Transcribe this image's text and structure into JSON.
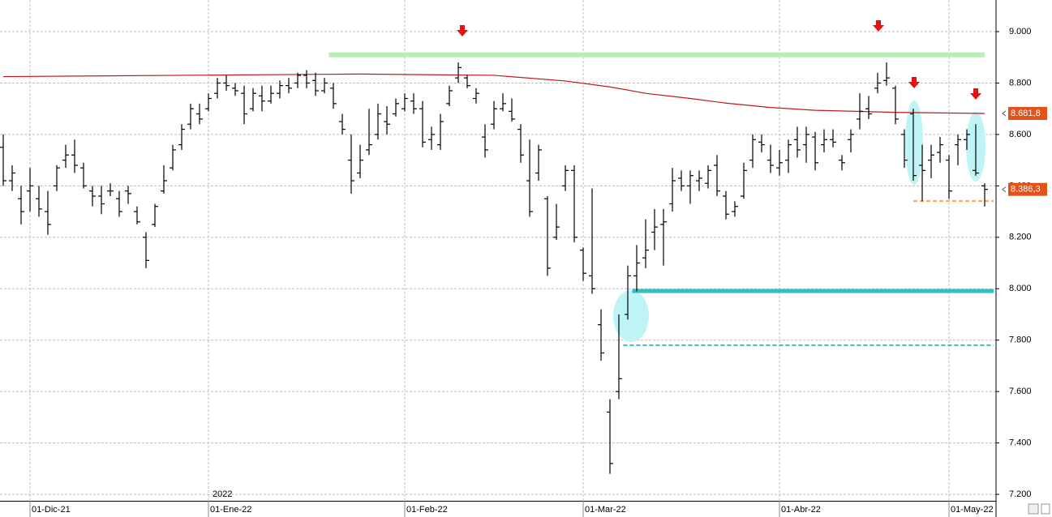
{
  "chart_data": {
    "type": "ohlc",
    "year_label": "2022",
    "categories": [
      null,
      null,
      null,
      "01-Dic-21",
      null,
      null,
      null,
      null,
      null,
      null,
      null,
      null,
      null,
      null,
      null,
      null,
      null,
      null,
      null,
      null,
      null,
      null,
      null,
      "01-Ene-22",
      null,
      null,
      null,
      null,
      null,
      null,
      null,
      null,
      null,
      null,
      null,
      null,
      null,
      null,
      null,
      null,
      null,
      null,
      null,
      null,
      null,
      "01-Feb-22",
      null,
      null,
      null,
      null,
      null,
      null,
      null,
      null,
      null,
      null,
      null,
      null,
      null,
      null,
      null,
      null,
      null,
      null,
      null,
      "01-Mar-22",
      null,
      null,
      null,
      null,
      null,
      null,
      null,
      null,
      null,
      null,
      null,
      null,
      null,
      null,
      null,
      null,
      null,
      null,
      null,
      null,
      null,
      "01-Abr-22",
      null,
      null,
      null,
      null,
      null,
      null,
      null,
      null,
      null,
      null,
      null,
      null,
      null,
      null,
      null,
      null,
      null,
      null,
      "01-May-22",
      null,
      null,
      null,
      null
    ],
    "open": [
      8550,
      8420,
      8350,
      8380,
      8350,
      8300,
      8400,
      8500,
      8520,
      8470,
      8380,
      8360,
      8380,
      8350,
      8380,
      8300,
      8200,
      8250,
      8380,
      8470,
      8560,
      8640,
      8680,
      8700,
      8760,
      8800,
      8780,
      8760,
      8700,
      8750,
      8730,
      8760,
      8790,
      8800,
      8830,
      8810,
      8770,
      8780,
      8650,
      8500,
      8450,
      8540,
      8600,
      8650,
      8680,
      8700,
      8730,
      8700,
      8580,
      8560,
      8720,
      8820,
      8820,
      8740,
      8590,
      8640,
      8700,
      8690,
      8620,
      8420,
      8450,
      8350,
      8200,
      8400,
      8460,
      8150,
      8050,
      7860,
      7520,
      7600,
      7900,
      8050,
      8120,
      8220,
      8250,
      8330,
      8430,
      8400,
      8420,
      8410,
      8480,
      8360,
      8300,
      8360,
      8500,
      8570,
      8500,
      8470,
      8500,
      8580,
      8560,
      8590,
      8560,
      8580,
      8500,
      8580,
      8660,
      8700,
      8780,
      8810,
      8780,
      8600,
      8680,
      8480,
      8500,
      8530,
      8500,
      8560,
      8580,
      8460,
      8400
    ],
    "high": [
      8600,
      8480,
      8400,
      8470,
      8400,
      8380,
      8480,
      8560,
      8580,
      8490,
      8400,
      8400,
      8410,
      8380,
      8400,
      8320,
      8220,
      8330,
      8480,
      8560,
      8640,
      8720,
      8720,
      8760,
      8820,
      8830,
      8800,
      8790,
      8780,
      8790,
      8790,
      8810,
      8820,
      8840,
      8850,
      8840,
      8820,
      8800,
      8680,
      8600,
      8560,
      8700,
      8720,
      8710,
      8740,
      8760,
      8760,
      8730,
      8630,
      8680,
      8790,
      8880,
      8830,
      8780,
      8640,
      8730,
      8760,
      8740,
      8640,
      8580,
      8560,
      8360,
      8330,
      8480,
      8480,
      8160,
      8390,
      7920,
      7570,
      7900,
      8090,
      8170,
      8270,
      8310,
      8310,
      8470,
      8460,
      8460,
      8460,
      8480,
      8520,
      8380,
      8340,
      8490,
      8600,
      8600,
      8560,
      8540,
      8580,
      8630,
      8630,
      8610,
      8620,
      8620,
      8520,
      8620,
      8760,
      8750,
      8840,
      8880,
      8790,
      8620,
      8700,
      8560,
      8560,
      8590,
      8520,
      8600,
      8620,
      8640,
      8410
    ],
    "low": [
      8400,
      8380,
      8250,
      8300,
      8280,
      8210,
      8380,
      8470,
      8450,
      8390,
      8320,
      8290,
      8360,
      8280,
      8330,
      8250,
      8080,
      8240,
      8370,
      8460,
      8540,
      8620,
      8640,
      8690,
      8740,
      8770,
      8750,
      8640,
      8690,
      8690,
      8720,
      8740,
      8760,
      8780,
      8780,
      8750,
      8760,
      8700,
      8600,
      8370,
      8430,
      8520,
      8580,
      8600,
      8670,
      8690,
      8680,
      8550,
      8540,
      8540,
      8710,
      8800,
      8780,
      8720,
      8510,
      8620,
      8690,
      8650,
      8490,
      8280,
      8420,
      8050,
      8190,
      8380,
      8180,
      8030,
      7980,
      7720,
      7280,
      7570,
      7880,
      7990,
      8080,
      8150,
      8090,
      8300,
      8380,
      8330,
      8380,
      8390,
      8360,
      8270,
      8280,
      8350,
      8470,
      8530,
      8450,
      8440,
      8450,
      8510,
      8490,
      8460,
      8530,
      8550,
      8460,
      8530,
      8620,
      8660,
      8760,
      8790,
      8640,
      8470,
      8420,
      8340,
      8430,
      8490,
      8350,
      8480,
      8540,
      8440,
      8320
    ],
    "close": [
      8420,
      8450,
      8300,
      8400,
      8310,
      8250,
      8470,
      8520,
      8480,
      8400,
      8360,
      8330,
      8380,
      8300,
      8370,
      8260,
      8110,
      8320,
      8420,
      8540,
      8620,
      8700,
      8660,
      8740,
      8800,
      8790,
      8770,
      8680,
      8760,
      8730,
      8760,
      8790,
      8780,
      8830,
      8800,
      8770,
      8800,
      8720,
      8620,
      8420,
      8500,
      8560,
      8680,
      8640,
      8720,
      8740,
      8700,
      8570,
      8600,
      8650,
      8770,
      8860,
      8790,
      8760,
      8540,
      8700,
      8720,
      8660,
      8520,
      8300,
      8540,
      8080,
      8240,
      8460,
      8200,
      8060,
      8000,
      7750,
      7320,
      7650,
      8050,
      8100,
      8150,
      8240,
      8260,
      8420,
      8400,
      8440,
      8430,
      8460,
      8380,
      8290,
      8320,
      8460,
      8580,
      8560,
      8480,
      8490,
      8560,
      8540,
      8600,
      8490,
      8580,
      8570,
      8490,
      8600,
      8690,
      8680,
      8800,
      8820,
      8660,
      8500,
      8440,
      8460,
      8520,
      8560,
      8380,
      8580,
      8600,
      8450,
      8386.3
    ],
    "bar_color": "#000000",
    "moving_average": {
      "color": "#c0191b",
      "x": [
        0,
        20,
        40,
        55,
        63,
        68,
        72,
        77,
        81,
        86,
        91,
        100,
        110
      ],
      "values": [
        8825,
        8830,
        8835,
        8830,
        8808,
        8785,
        8760,
        8740,
        8722,
        8705,
        8694,
        8686,
        8681.8
      ]
    },
    "hlines": [
      {
        "value": 8910,
        "from": 36.5,
        "to": 110,
        "color": "#b5f0b2",
        "width": 6,
        "dashed": false
      },
      {
        "value": 7991,
        "from": 70.5,
        "to": 111,
        "color": "#2fbfc6",
        "width": 5,
        "dashed": false
      },
      {
        "value": 7780,
        "from": 69.5,
        "to": 111,
        "color": "#2fbfc6",
        "width": 2,
        "dashed": true
      },
      {
        "value": 8341,
        "from": 102,
        "to": 111,
        "color": "#f3a35a",
        "width": 2,
        "dashed": true
      }
    ],
    "price_labels": [
      {
        "value": 8681.8,
        "label": "8.681,8",
        "color": "#e4521b"
      },
      {
        "value": 8386.3,
        "label": "8.386,3",
        "color": "#e4521b"
      }
    ],
    "ylim": [
      7175,
      9123
    ],
    "yticks": [
      {
        "value": 7200,
        "label": "7.200"
      },
      {
        "value": 7400,
        "label": "7.400"
      },
      {
        "value": 7600,
        "label": "7.600"
      },
      {
        "value": 7800,
        "label": "7.800"
      },
      {
        "value": 8000,
        "label": "8.000"
      },
      {
        "value": 8200,
        "label": "8.200"
      },
      {
        "value": 8400,
        "label": "8.400"
      },
      {
        "value": 8600,
        "label": "8.600"
      },
      {
        "value": 8800,
        "label": "8.800"
      },
      {
        "value": 9000,
        "label": "9.000"
      }
    ],
    "grid": true
  }
}
